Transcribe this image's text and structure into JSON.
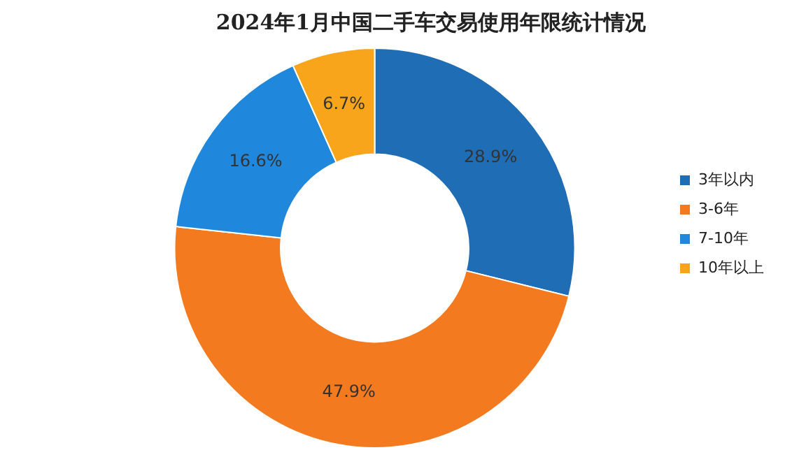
{
  "chart_data": {
    "type": "donut",
    "title": "2024年1月中国二手车交易使用年限统计情况",
    "categories": [
      "3年以内",
      "3-6年",
      "7-10年",
      "10年以上"
    ],
    "values": [
      28.9,
      47.9,
      16.6,
      6.7
    ],
    "colors": [
      "#1f6db5",
      "#f47a20",
      "#2088dc",
      "#f8a51b"
    ],
    "value_labels": [
      "28.9%",
      "47.9%",
      "16.6%",
      "6.7%"
    ],
    "legend": "right"
  }
}
